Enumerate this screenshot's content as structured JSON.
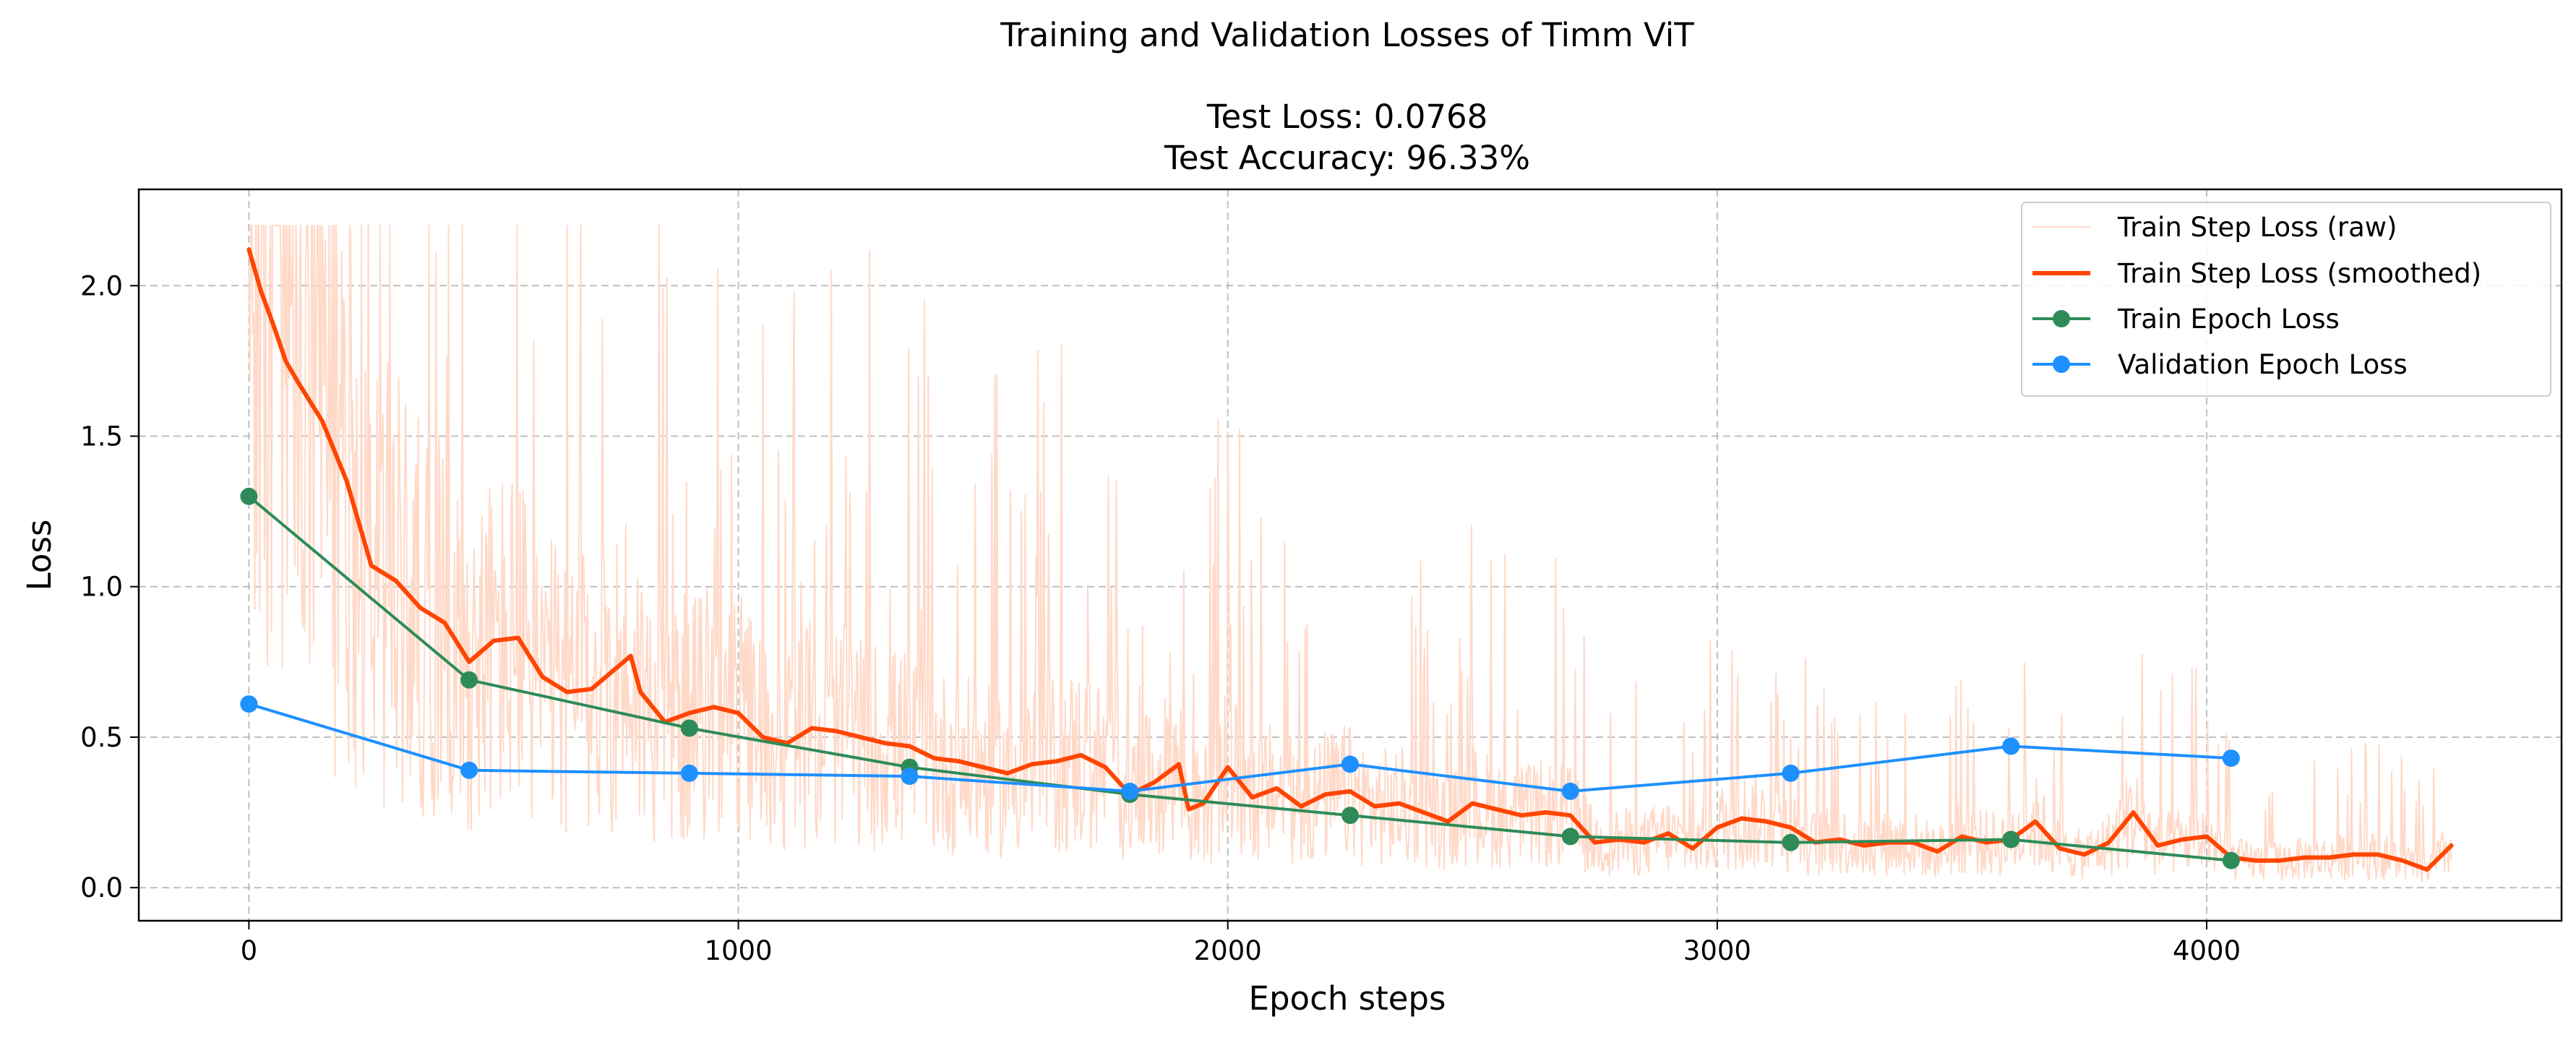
{
  "chart_data": {
    "type": "line",
    "title": "Training and Validation Losses of Timm ViT",
    "subtitle_lines": [
      "Test Loss: 0.0768",
      "Test Accuracy: 96.33%"
    ],
    "xlabel": "Epoch steps",
    "ylabel": "Loss",
    "xlim": [
      -225,
      4725
    ],
    "ylim": [
      -0.11,
      2.32
    ],
    "x_ticks": [
      0,
      1000,
      2000,
      3000,
      4000
    ],
    "x_tick_labels": [
      "0",
      "1000",
      "2000",
      "3000",
      "4000"
    ],
    "y_ticks": [
      0.0,
      0.5,
      1.0,
      1.5,
      2.0
    ],
    "y_tick_labels": [
      "0.0",
      "0.5",
      "1.0",
      "1.5",
      "2.0"
    ],
    "grid": true,
    "legend_position": "top-right",
    "series": [
      {
        "name": "Train Step Loss (raw)",
        "kind": "raw",
        "color": "#ffd9c8",
        "smoothed_reference": "Train Step Loss (smoothed)"
      },
      {
        "name": "Train Step Loss (smoothed)",
        "kind": "smoothed",
        "color": "#ff4500",
        "x": [
          0,
          25,
          50,
          75,
          100,
          150,
          200,
          250,
          300,
          350,
          400,
          450,
          500,
          550,
          600,
          650,
          700,
          780,
          800,
          850,
          900,
          950,
          1000,
          1050,
          1100,
          1150,
          1200,
          1250,
          1300,
          1350,
          1400,
          1450,
          1500,
          1550,
          1600,
          1650,
          1700,
          1750,
          1800,
          1850,
          1900,
          1920,
          1950,
          2000,
          2050,
          2100,
          2150,
          2200,
          2250,
          2300,
          2350,
          2400,
          2450,
          2500,
          2550,
          2600,
          2650,
          2700,
          2750,
          2800,
          2850,
          2900,
          2950,
          3000,
          3050,
          3100,
          3150,
          3200,
          3250,
          3300,
          3350,
          3400,
          3450,
          3500,
          3550,
          3600,
          3650,
          3700,
          3750,
          3800,
          3850,
          3900,
          3950,
          4000,
          4050,
          4100,
          4150,
          4200,
          4250,
          4300,
          4350,
          4400,
          4450,
          4500
        ],
        "y": [
          2.12,
          1.98,
          1.87,
          1.75,
          1.68,
          1.55,
          1.35,
          1.07,
          1.02,
          0.93,
          0.88,
          0.75,
          0.82,
          0.83,
          0.7,
          0.65,
          0.66,
          0.77,
          0.65,
          0.55,
          0.58,
          0.6,
          0.58,
          0.5,
          0.48,
          0.53,
          0.52,
          0.5,
          0.48,
          0.47,
          0.43,
          0.42,
          0.4,
          0.38,
          0.41,
          0.42,
          0.44,
          0.4,
          0.31,
          0.35,
          0.41,
          0.26,
          0.28,
          0.4,
          0.3,
          0.33,
          0.27,
          0.31,
          0.32,
          0.27,
          0.28,
          0.25,
          0.22,
          0.28,
          0.26,
          0.24,
          0.25,
          0.24,
          0.15,
          0.16,
          0.15,
          0.18,
          0.13,
          0.2,
          0.23,
          0.22,
          0.2,
          0.15,
          0.16,
          0.14,
          0.15,
          0.15,
          0.12,
          0.17,
          0.15,
          0.16,
          0.22,
          0.13,
          0.11,
          0.15,
          0.25,
          0.14,
          0.16,
          0.17,
          0.1,
          0.09,
          0.09,
          0.1,
          0.1,
          0.11,
          0.11,
          0.09,
          0.06,
          0.14
        ]
      },
      {
        "name": "Train Epoch Loss",
        "kind": "epoch",
        "color": "#2e8b57",
        "x": [
          0,
          450,
          900,
          1350,
          1800,
          2250,
          2700,
          3150,
          3600,
          4050
        ],
        "y": [
          1.3,
          0.69,
          0.53,
          0.4,
          0.31,
          0.24,
          0.17,
          0.15,
          0.16,
          0.09
        ]
      },
      {
        "name": "Validation Epoch Loss",
        "kind": "epoch",
        "color": "#1e90ff",
        "x": [
          0,
          450,
          900,
          1350,
          1800,
          2250,
          2700,
          3150,
          3600,
          4050
        ],
        "y": [
          0.61,
          0.39,
          0.38,
          0.37,
          0.32,
          0.41,
          0.32,
          0.38,
          0.47,
          0.43
        ]
      }
    ]
  }
}
